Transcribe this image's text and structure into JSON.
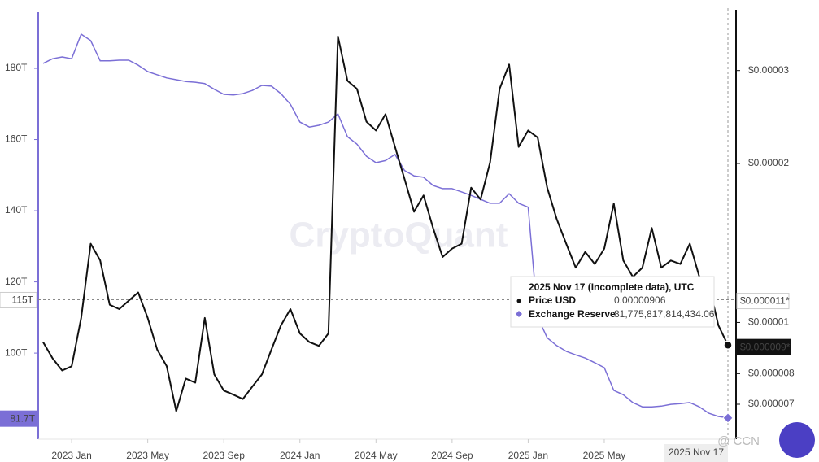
{
  "chart_data": {
    "type": "line",
    "watermark": "CryptoQuant",
    "logo": "@ CCN",
    "categories": [
      null,
      null,
      null,
      "2023 Jan",
      null,
      null,
      null,
      null,
      null,
      null,
      null,
      "2023 May",
      null,
      null,
      null,
      null,
      null,
      null,
      null,
      "2023 Sep",
      null,
      null,
      null,
      null,
      null,
      null,
      null,
      "2024 Jan",
      null,
      null,
      null,
      null,
      null,
      null,
      null,
      "2024 May",
      null,
      null,
      null,
      null,
      null,
      null,
      null,
      "2024 Sep",
      null,
      null,
      null,
      null,
      null,
      null,
      null,
      "2025 Jan",
      null,
      null,
      null,
      null,
      null,
      null,
      null,
      "2025 May",
      null,
      null,
      null,
      null,
      null,
      null,
      null,
      null,
      null,
      null,
      null,
      null,
      "2025 Nov 17"
    ],
    "series": [
      {
        "name": "Exchange Reserve",
        "color": "#7b6fd6",
        "axis": "y",
        "values": [
          181400000000000.0,
          182700000000000.0,
          183200000000000.0,
          182700000000000.0,
          189600000000000.0,
          187800000000000.0,
          182100000000000.0,
          182100000000000.0,
          182300000000000.0,
          182300000000000.0,
          180900000000000.0,
          179100000000000.0,
          178200000000000.0,
          177300000000000.0,
          176800000000000.0,
          176300000000000.0,
          176100000000000.0,
          175700000000000.0,
          174100000000000.0,
          172700000000000.0,
          172500000000000.0,
          172900000000000.0,
          173800000000000.0,
          175200000000000.0,
          175000000000000.0,
          172900000000000.0,
          169900000000000.0,
          164900000000000.0,
          163500000000000.0,
          164000000000000.0,
          164900000000000.0,
          167200000000000.0,
          160800000000000.0,
          158700000000000.0,
          155300000000000.0,
          153500000000000.0,
          154100000000000.0,
          155800000000000.0,
          151300000000000.0,
          149800000000000.0,
          149400000000000.0,
          147100000000000.0,
          146200000000000.0,
          146200000000000.0,
          145300000000000.0,
          144300000000000.0,
          143200000000000.0,
          142100000000000.0,
          142100000000000.0,
          144800000000000.0,
          142100000000000.0,
          141000000000000.0,
          110100000000000.0,
          104300000000000.0,
          102100000000000.0,
          100500000000000.0,
          99500000000000.0,
          98600000000000.0,
          97300000000000.0,
          95900000000000.0,
          89500000000000.0,
          88300000000000.0,
          86100000000000.0,
          84900000000000.0,
          84900000000000.0,
          85100000000000.0,
          85600000000000.0,
          85800000000000.0,
          86100000000000.0,
          84900000000000.0,
          83100000000000.0,
          82200000000000.0,
          81775817814434.06
        ]
      },
      {
        "name": "Price USD",
        "color": "#111111",
        "axis": "y2",
        "values": [
          9.18e-06,
          8.55e-06,
          8.11e-06,
          8.26e-06,
          1.02e-05,
          1.41e-05,
          1.31e-05,
          1.08e-05,
          1.06e-05,
          1.1e-05,
          1.14e-05,
          1.02e-05,
          8.88e-06,
          8.26e-06,
          6.79e-06,
          7.83e-06,
          7.69e-06,
          1.02e-05,
          7.97e-06,
          7.43e-06,
          7.3e-06,
          7.16e-06,
          7.56e-06,
          7.97e-06,
          8.88e-06,
          9.87e-06,
          1.06e-05,
          9.53e-06,
          9.18e-06,
          9.03e-06,
          9.53e-06,
          3.48e-05,
          2.87e-05,
          2.77e-05,
          2.4e-05,
          2.31e-05,
          2.48e-05,
          2.15e-05,
          1.87e-05,
          1.62e-05,
          1.74e-05,
          1.51e-05,
          1.33e-05,
          1.38e-05,
          1.41e-05,
          1.8e-05,
          1.71e-05,
          2.01e-05,
          2.77e-05,
          3.08e-05,
          2.15e-05,
          2.31e-05,
          2.24e-05,
          1.8e-05,
          1.57e-05,
          1.41e-05,
          1.27e-05,
          1.36e-05,
          1.29e-05,
          1.38e-05,
          1.68e-05,
          1.31e-05,
          1.22e-05,
          1.27e-05,
          1.51e-05,
          1.27e-05,
          1.31e-05,
          1.29e-05,
          1.41e-05,
          1.22e-05,
          1.18e-05,
          9.87e-06,
          9.06e-06
        ]
      }
    ],
    "ylim": [
      75800000000000.0,
      199200000000000.0
    ],
    "yticks": [
      {
        "value": 100000000000000.0,
        "label": "100T"
      },
      {
        "value": 120000000000000.0,
        "label": "120T"
      },
      {
        "value": 140000000000000.0,
        "label": "140T"
      },
      {
        "value": 160000000000000.0,
        "label": "160T"
      },
      {
        "value": 180000000000000.0,
        "label": "180T"
      }
    ],
    "y2lim": [
      6.01e-06,
      4.08e-05
    ],
    "y2_log": true,
    "y2ticks": [
      {
        "value": 7e-06,
        "label": "$0.000007"
      },
      {
        "value": 8e-06,
        "label": "$0.000008"
      },
      {
        "value": 1e-05,
        "label": "$0.00001"
      },
      {
        "value": 2e-05,
        "label": "$0.00002"
      },
      {
        "value": 3e-05,
        "label": "$0.00003"
      }
    ],
    "crosshair": {
      "y": {
        "value": 115000000000000.0,
        "label": "115T"
      },
      "y2": {
        "value": 1.1e-05,
        "label": "$0.000011*"
      }
    },
    "current": {
      "y": {
        "value": 81700000000000.0,
        "label": "81.7T"
      },
      "y2": {
        "value": 9e-06,
        "label": "$0.000009*"
      }
    },
    "tooltip": {
      "title": "2025 Nov 17 (Incomplete data), UTC",
      "price_label": "0.00000906",
      "reserve_label": "81,775,817,814,434.06"
    }
  }
}
